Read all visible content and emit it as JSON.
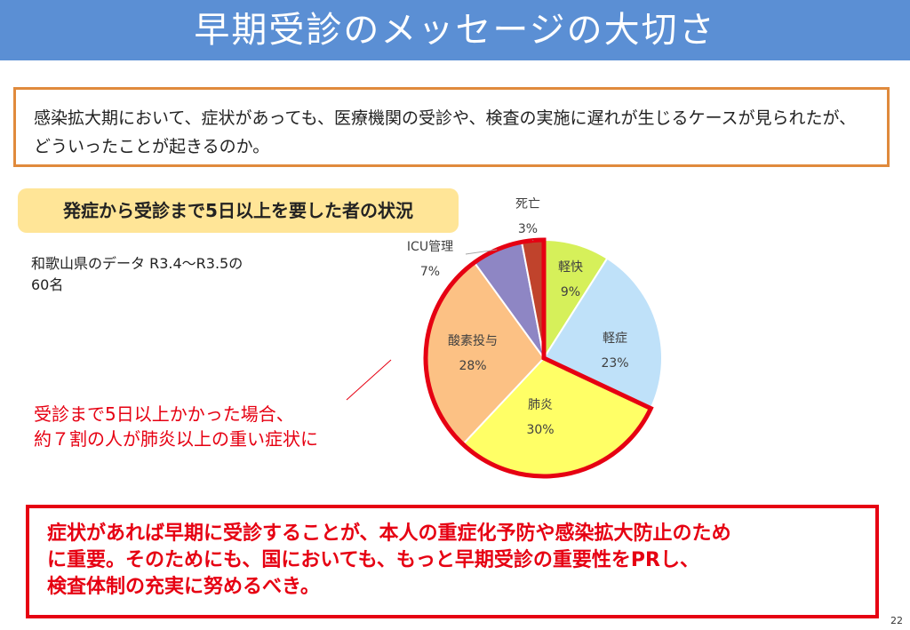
{
  "slide": {
    "title": "早期受診のメッセージの大切さ",
    "intro": "感染拡大期において、症状があっても、医療機関の受診や、検査の実施に遅れが生じるケースが見られたが、どういったことが起きるのか。",
    "subtitle": "発症から受診まで5日以上を要した者の状況",
    "source_line1": "和歌山県のデータ R3.4～R3.5の",
    "source_line2": "60名",
    "callout_line1": "受診まで5日以上かかった場合、",
    "callout_line2": "約７割の人が肺炎以上の重い症状に",
    "conclusion_line1": "症状があれば早期に受診することが、本人の重症化予防や感染拡大防止のため",
    "conclusion_line2": "に重要。そのためにも、国においても、もっと早期受診の重要性をPRし、",
    "conclusion_line3": "検査体制の充実に努めるべき。",
    "page_number": "22"
  },
  "colors": {
    "title_bar": "#5b8fd4",
    "intro_border": "#e08a3c",
    "subtitle_bg": "#ffe597",
    "accent_red": "#e60012"
  },
  "chart_data": {
    "type": "pie",
    "title": "",
    "slices": [
      {
        "label": "軽快",
        "value": 9,
        "value_label": "9%",
        "color": "#d6f05a"
      },
      {
        "label": "軽症",
        "value": 23,
        "value_label": "23%",
        "color": "#bfe1f9"
      },
      {
        "label": "肺炎",
        "value": 30,
        "value_label": "30%",
        "color": "#ffff66"
      },
      {
        "label": "酸素投与",
        "value": 28,
        "value_label": "28%",
        "color": "#fcc184"
      },
      {
        "label": "ICU管理",
        "value": 7,
        "value_label": "7%",
        "color": "#8e86c4"
      },
      {
        "label": "死亡",
        "value": 3,
        "value_label": "3%",
        "color": "#c0432c"
      }
    ],
    "highlighted_slices": [
      "肺炎",
      "酸素投与",
      "ICU管理",
      "死亡"
    ],
    "highlight_color": "#e60012"
  }
}
